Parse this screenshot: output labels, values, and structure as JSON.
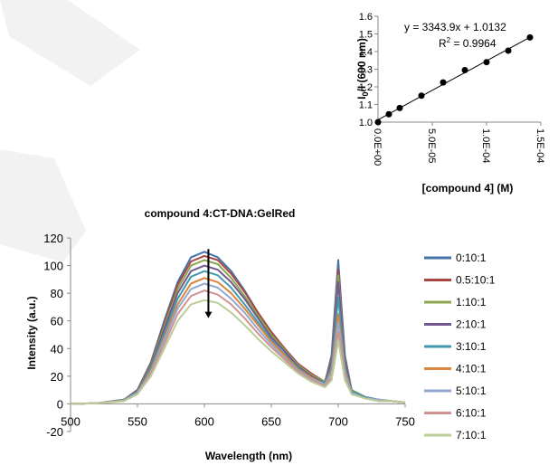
{
  "chart_data": [
    {
      "type": "scatter",
      "title": "",
      "xlabel": "[compound 4] (M)",
      "ylabel": "I0/I (600 nm)",
      "ylabel_main": "I",
      "ylabel_sub": "0",
      "ylabel_rest": "/I (600 nm)",
      "xlim": [
        0,
        0.00015
      ],
      "ylim": [
        1.0,
        1.6
      ],
      "x_ticks": [
        0,
        5e-05,
        0.0001,
        0.00015
      ],
      "x_tick_labels": [
        "0.0E+00",
        "5.0E-05",
        "1.0E-04",
        "1.5E-04"
      ],
      "y_ticks": [
        1.0,
        1.1,
        1.2,
        1.3,
        1.4,
        1.5,
        1.6
      ],
      "y_tick_labels": [
        "1.0",
        "1.1",
        "1.2",
        "1.3",
        "1.4",
        "1.5",
        "1.6"
      ],
      "grid": false,
      "points": [
        {
          "x": 0,
          "y": 1.0
        },
        {
          "x": 1e-05,
          "y": 1.045
        },
        {
          "x": 2e-05,
          "y": 1.08
        },
        {
          "x": 4e-05,
          "y": 1.15
        },
        {
          "x": 6e-05,
          "y": 1.225
        },
        {
          "x": 8e-05,
          "y": 1.295
        },
        {
          "x": 0.0001,
          "y": 1.34
        },
        {
          "x": 0.00012,
          "y": 1.405
        },
        {
          "x": 0.00014,
          "y": 1.48
        }
      ],
      "trendline": {
        "slope": 3343.9,
        "intercept": 1.0132
      },
      "equation": "y = 3343.9x + 1.0132",
      "r2_label": "R",
      "r2_sup": "2",
      "r2_value": " = 0.9964"
    },
    {
      "type": "line",
      "title": "compound  4:CT-DNA:GelRed",
      "xlabel": "Wavelength (nm)",
      "ylabel": "Intensity (a.u.)",
      "xlim": [
        500,
        750
      ],
      "ylim": [
        -20,
        120
      ],
      "x_ticks": [
        500,
        550,
        600,
        650,
        700,
        750
      ],
      "x_tick_labels": [
        "500",
        "550",
        "600",
        "650",
        "700",
        "750"
      ],
      "y_ticks": [
        -20,
        0,
        20,
        40,
        60,
        80,
        100,
        120
      ],
      "y_tick_labels": [
        "-20",
        "0",
        "20",
        "40",
        "60",
        "80",
        "100",
        "120"
      ],
      "grid": false,
      "legend_position": "right",
      "x": [
        500,
        520,
        540,
        550,
        560,
        570,
        580,
        590,
        600,
        610,
        620,
        630,
        640,
        650,
        660,
        670,
        680,
        690,
        695,
        700,
        705,
        710,
        720,
        730,
        740,
        750
      ],
      "series": [
        {
          "name": "0:10:1",
          "color": "#4572a7",
          "values": [
            0,
            0.5,
            3,
            10,
            30,
            60,
            88,
            106,
            110,
            106,
            96,
            82,
            66,
            52,
            40,
            29,
            21,
            15,
            35,
            104,
            35,
            10,
            5,
            3,
            2,
            1
          ]
        },
        {
          "name": "0.5:10:1",
          "color": "#aa4643",
          "values": [
            0,
            0.5,
            3,
            10,
            29,
            58,
            86,
            103,
            107,
            104,
            94,
            81,
            66,
            52,
            40,
            29,
            22,
            16,
            33,
            97,
            33,
            10,
            5,
            3,
            2,
            1
          ]
        },
        {
          "name": "1:10:1",
          "color": "#89a54e",
          "values": [
            0,
            0.5,
            3,
            9,
            28,
            56,
            83,
            100,
            104,
            101,
            91,
            78,
            64,
            50,
            39,
            28,
            21,
            16,
            32,
            93,
            32,
            10,
            5,
            3,
            2,
            1
          ]
        },
        {
          "name": "2:10:1",
          "color": "#71588f",
          "values": [
            0,
            0.5,
            3,
            9,
            27,
            54,
            80,
            96,
            100,
            97,
            88,
            76,
            62,
            48,
            38,
            27,
            20,
            15,
            31,
            88,
            31,
            9,
            5,
            3,
            2,
            1
          ]
        },
        {
          "name": "3:10:1",
          "color": "#4198af",
          "values": [
            0,
            0.5,
            3,
            9,
            26,
            51,
            76,
            92,
            96,
            93,
            84,
            72,
            59,
            46,
            36,
            26,
            19,
            15,
            27,
            77,
            27,
            9,
            5,
            3,
            2,
            1
          ]
        },
        {
          "name": "4:10:1",
          "color": "#db843d",
          "values": [
            0,
            0.5,
            2.5,
            8,
            24,
            48,
            72,
            87,
            91,
            88,
            80,
            69,
            57,
            45,
            35,
            25,
            19,
            14,
            24,
            65,
            24,
            8,
            4,
            3,
            2,
            1
          ]
        },
        {
          "name": "5:10:1",
          "color": "#93a9cf",
          "values": [
            0,
            0.5,
            2.5,
            8,
            23,
            46,
            69,
            83,
            87,
            84,
            76,
            66,
            54,
            43,
            33,
            24,
            18,
            14,
            22,
            59,
            22,
            8,
            4,
            3,
            2,
            1
          ]
        },
        {
          "name": "6:10:1",
          "color": "#d19392",
          "values": [
            0,
            0.5,
            2.5,
            7,
            22,
            43,
            65,
            78,
            82,
            79,
            72,
            62,
            51,
            41,
            32,
            23,
            17,
            13,
            19,
            52,
            19,
            7,
            4,
            2,
            2,
            1
          ]
        },
        {
          "name": "7:10:1",
          "color": "#b9cd96",
          "values": [
            0,
            0.5,
            2,
            7,
            20,
            40,
            60,
            72,
            75,
            73,
            66,
            57,
            47,
            38,
            30,
            22,
            16,
            12,
            17,
            46,
            17,
            7,
            4,
            2,
            2,
            1
          ]
        }
      ],
      "arrow": {
        "x": 603,
        "y_start": 112,
        "y_end": 62,
        "direction": "down"
      }
    }
  ]
}
